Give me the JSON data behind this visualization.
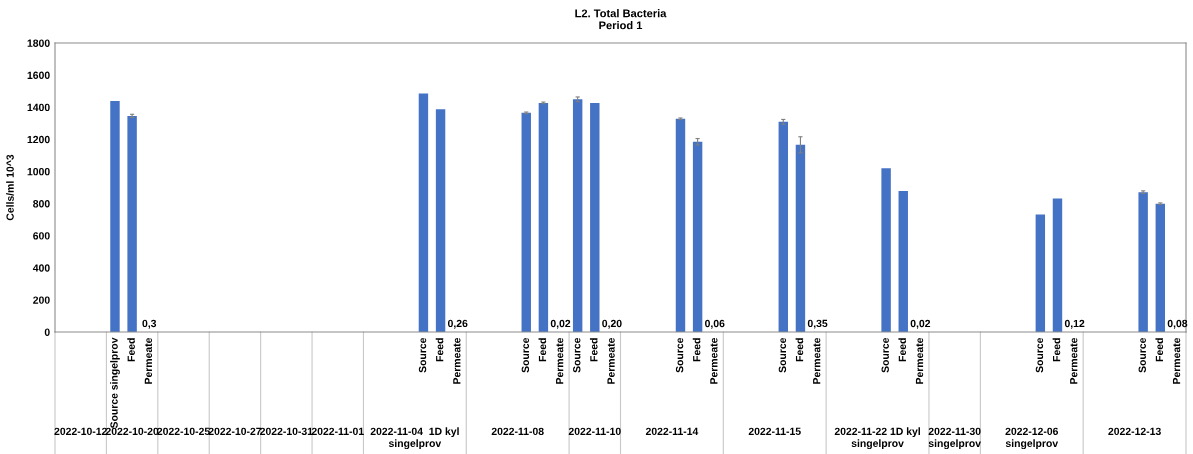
{
  "chart_data": {
    "type": "bar",
    "title": "L2. Total Bacteria\nPeriod 1",
    "ylabel": "Cells/ml 10^3",
    "categories": [
      null,
      null,
      null,
      "Source singelprov",
      "Feed",
      "Permeate",
      null,
      null,
      null,
      null,
      null,
      null,
      null,
      null,
      null,
      null,
      null,
      null,
      null,
      null,
      null,
      "Source",
      "Feed",
      "Permeate",
      null,
      null,
      null,
      "Source",
      "Feed",
      "Permeate",
      "Source",
      "Feed",
      "Permeate",
      null,
      null,
      null,
      "Source",
      "Feed",
      "Permeate",
      null,
      null,
      null,
      "Source",
      "Feed",
      "Permeate",
      null,
      null,
      null,
      "Source",
      "Feed",
      "Permeate",
      null,
      null,
      null,
      null,
      null,
      null,
      "Source",
      "Feed",
      "Permeate",
      null,
      null,
      null,
      "Source",
      "Feed",
      "Permeate"
    ],
    "values": [
      null,
      null,
      null,
      1439,
      1346,
      0.3,
      null,
      null,
      null,
      null,
      null,
      null,
      null,
      null,
      null,
      null,
      null,
      null,
      null,
      null,
      null,
      1485,
      1387,
      0.26,
      null,
      null,
      null,
      1365,
      1427,
      0.02,
      1449,
      1427,
      0.2,
      null,
      null,
      null,
      1328,
      1185,
      0.06,
      null,
      null,
      null,
      1309,
      1166,
      0.35,
      null,
      null,
      null,
      1020,
      878,
      0.02,
      null,
      null,
      null,
      null,
      null,
      null,
      732,
      831,
      0.12,
      null,
      null,
      null,
      871,
      799,
      0.08
    ],
    "errors": [
      null,
      null,
      null,
      null,
      10,
      null,
      null,
      null,
      null,
      null,
      null,
      null,
      null,
      null,
      null,
      null,
      null,
      null,
      null,
      null,
      null,
      null,
      null,
      null,
      null,
      null,
      null,
      5,
      5,
      null,
      15,
      null,
      null,
      null,
      null,
      null,
      5,
      20,
      null,
      null,
      null,
      null,
      15,
      50,
      null,
      null,
      null,
      null,
      null,
      null,
      null,
      null,
      null,
      null,
      null,
      null,
      null,
      null,
      null,
      null,
      null,
      null,
      null,
      8,
      5,
      null
    ],
    "value_labels": [
      null,
      null,
      null,
      null,
      null,
      "0,3",
      null,
      null,
      null,
      null,
      null,
      null,
      null,
      null,
      null,
      null,
      null,
      null,
      null,
      null,
      null,
      null,
      null,
      "0,26",
      null,
      null,
      null,
      null,
      null,
      "0,02",
      null,
      null,
      "0,20",
      null,
      null,
      null,
      null,
      null,
      "0,06",
      null,
      null,
      null,
      null,
      null,
      "0,35",
      null,
      null,
      null,
      null,
      null,
      "0,02",
      null,
      null,
      null,
      null,
      null,
      null,
      null,
      null,
      "0,12",
      null,
      null,
      null,
      null,
      null,
      "0,08"
    ],
    "color": "#4472c4",
    "ylim": [
      0,
      1800
    ],
    "yticks": [
      0,
      200,
      400,
      600,
      800,
      1000,
      1200,
      1400,
      1600,
      1800
    ],
    "annotations": [
      "2022-10-12",
      "2022-10-20",
      "2022-10-25",
      "2022-10-27",
      "2022-10-31",
      "2022-11-01",
      "2022-11-04  1D kyl\nsingelprov",
      "2022-11-08",
      "2022-11-10",
      "2022-11-14",
      "2022-11-15",
      "2022-11-22 1D kyl\nsingelprov",
      "2022-11-30\nsingelprov",
      "2022-12-06\nsingelprov",
      "2022-12-13"
    ]
  }
}
